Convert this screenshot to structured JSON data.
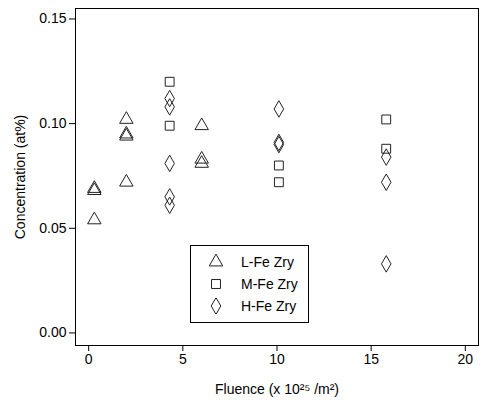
{
  "chart_data": {
    "type": "scatter",
    "x_label": "Fluence (x 10²⁵ /m²)",
    "y_label": "Concentration (at%)",
    "xlim": [
      -0.7,
      20.7
    ],
    "xticks": [
      0,
      5,
      10,
      15,
      20
    ],
    "ylim": [
      -0.006,
      0.155
    ],
    "yticks": [
      {
        "value": 0,
        "label": "0.00"
      },
      {
        "value": 0.05,
        "label": "0.05"
      },
      {
        "value": 0.1,
        "label": "0.10"
      },
      {
        "value": 0.15,
        "label": "0.15"
      }
    ],
    "legend": "lower center",
    "series": [
      {
        "name": "L-Fe Zry",
        "color": "#222222",
        "marker": "triangle",
        "x": [
          0.3,
          0.3,
          0.3,
          2.0,
          2.0,
          2.0,
          2.0,
          6.0,
          6.0,
          6.0
        ],
        "values": [
          0.069,
          0.068,
          0.054,
          0.102,
          0.095,
          0.094,
          0.072,
          0.099,
          0.083,
          0.081
        ]
      },
      {
        "name": "M-Fe Zry",
        "color": "#222222",
        "marker": "square",
        "x": [
          4.3,
          4.3,
          10.1,
          10.1,
          15.8,
          15.8
        ],
        "values": [
          0.12,
          0.099,
          0.08,
          0.072,
          0.102,
          0.088
        ]
      },
      {
        "name": "H-Fe Zry",
        "color": "#222222",
        "marker": "diamond",
        "x": [
          4.3,
          4.3,
          4.3,
          4.3,
          4.3,
          10.1,
          10.1,
          10.1,
          15.8,
          15.8,
          15.8
        ],
        "values": [
          0.112,
          0.108,
          0.081,
          0.065,
          0.061,
          0.107,
          0.091,
          0.09,
          0.084,
          0.072,
          0.033
        ]
      }
    ]
  }
}
